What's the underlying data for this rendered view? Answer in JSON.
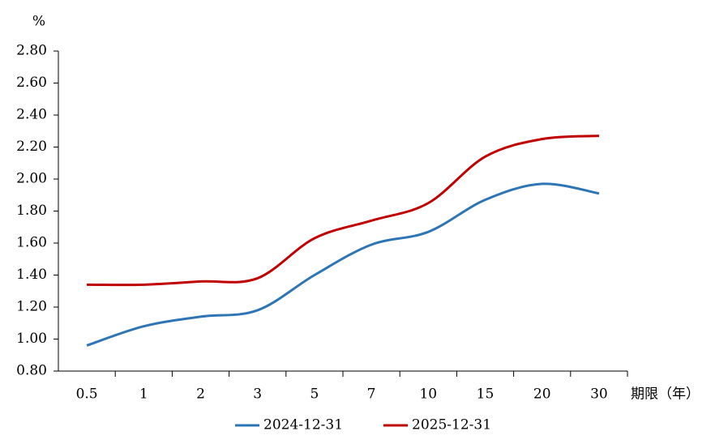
{
  "chart_data": {
    "type": "line",
    "y_label": "%",
    "x_label": "期限（年）",
    "categories": [
      "0.5",
      "1",
      "2",
      "3",
      "5",
      "7",
      "10",
      "15",
      "20",
      "30"
    ],
    "series": [
      {
        "name": "2024-12-31",
        "color": "#2e75b6",
        "values": [
          0.96,
          1.08,
          1.14,
          1.18,
          1.4,
          1.59,
          1.67,
          1.87,
          1.97,
          1.91
        ]
      },
      {
        "name": "2025-12-31",
        "color": "#c00000",
        "values": [
          1.34,
          1.34,
          1.36,
          1.38,
          1.63,
          1.74,
          1.85,
          2.14,
          2.25,
          2.27
        ]
      }
    ],
    "ylim": [
      0.8,
      2.8
    ],
    "yticks": [
      {
        "value": 0.8,
        "label": "0.80"
      },
      {
        "value": 1.0,
        "label": "1.00"
      },
      {
        "value": 1.2,
        "label": "1.20"
      },
      {
        "value": 1.4,
        "label": "1.40"
      },
      {
        "value": 1.6,
        "label": "1.60"
      },
      {
        "value": 1.8,
        "label": "1.80"
      },
      {
        "value": 2.0,
        "label": "2.00"
      },
      {
        "value": 2.2,
        "label": "2.20"
      },
      {
        "value": 2.4,
        "label": "2.40"
      },
      {
        "value": 2.6,
        "label": "2.60"
      },
      {
        "value": 2.8,
        "label": "2.80"
      }
    ],
    "legend": "bottom"
  }
}
